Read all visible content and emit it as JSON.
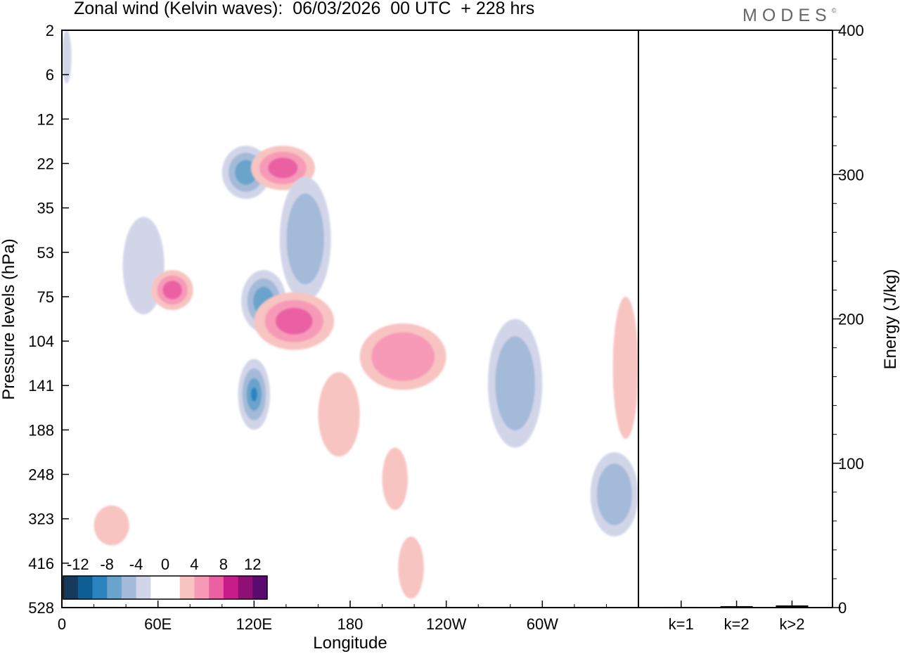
{
  "header": {
    "title": "Zonal wind (Kelvin waves):  06/03/2026  00 UTC  + 228 hrs",
    "logo": "MODES",
    "logo_mark": "©"
  },
  "chart_data": [
    {
      "type": "heatmap",
      "title": "Zonal wind (Kelvin waves):  06/03/2026  00 UTC  + 228 hrs",
      "xlabel": "Longitude",
      "ylabel": "Pressure levels (hPa)",
      "x_ticks": [
        "0",
        "60E",
        "120E",
        "180",
        "120W",
        "60W"
      ],
      "x_tick_values": [
        0,
        60,
        120,
        180,
        240,
        300
      ],
      "xlim": [
        0,
        360
      ],
      "y_ticks": [
        "2",
        "6",
        "12",
        "22",
        "35",
        "53",
        "75",
        "104",
        "141",
        "188",
        "248",
        "323",
        "416",
        "528"
      ],
      "y_scale": "model levels (inverted, top = 2 hPa)",
      "colorbar": {
        "labels": [
          "-12",
          "-8",
          "-4",
          "0",
          "4",
          "8",
          "12"
        ],
        "colors": [
          "#153a5b",
          "#0d5e93",
          "#2a83bf",
          "#6aa3cb",
          "#a4bad9",
          "#d2d5e8",
          "#ffffff",
          "#ffffff",
          "#f7c4c1",
          "#f79ab8",
          "#ea60a3",
          "#c81c88",
          "#8e1074",
          "#5a0b6e"
        ]
      },
      "colors": {
        "neg_light": "#d2d5e8",
        "neg_mid": "#a4bad9",
        "neg_strong": "#6aa3cb",
        "neg_max": "#2a83bf",
        "pos_light": "#f7c4c1",
        "pos_mid": "#f79ab8",
        "pos_strong": "#ea60a3"
      },
      "features": [
        {
          "sign": "neg",
          "lon": [
            0,
            6
          ],
          "level_index": [
            0,
            1.2
          ],
          "strength": 1
        },
        {
          "sign": "neg",
          "lon": [
            38,
            64
          ],
          "level_index": [
            4.2,
            6.4
          ],
          "strength": 1
        },
        {
          "sign": "neg",
          "lon": [
            100,
            130
          ],
          "level_index": [
            2.6,
            3.8
          ],
          "strength": 3
        },
        {
          "sign": "pos",
          "lon": [
            118,
            158
          ],
          "level_index": [
            2.6,
            3.6
          ],
          "strength": 3
        },
        {
          "sign": "neg",
          "lon": [
            136,
            168
          ],
          "level_index": [
            3.3,
            6.1
          ],
          "strength": 2
        },
        {
          "sign": "neg",
          "lon": [
            112,
            140
          ],
          "level_index": [
            5.4,
            6.8
          ],
          "strength": 3
        },
        {
          "sign": "pos",
          "lon": [
            120,
            170
          ],
          "level_index": [
            5.9,
            7.2
          ],
          "strength": 3
        },
        {
          "sign": "pos",
          "lon": [
            56,
            82
          ],
          "level_index": [
            5.4,
            6.3
          ],
          "strength": 3
        },
        {
          "sign": "pos",
          "lon": [
            186,
            240
          ],
          "level_index": [
            6.6,
            8.1
          ],
          "strength": 2
        },
        {
          "sign": "neg",
          "lon": [
            110,
            130
          ],
          "level_index": [
            7.4,
            9.0
          ],
          "strength": 4
        },
        {
          "sign": "pos",
          "lon": [
            160,
            186
          ],
          "level_index": [
            7.7,
            9.6
          ],
          "strength": 1
        },
        {
          "sign": "neg",
          "lon": [
            266,
            300
          ],
          "level_index": [
            6.5,
            9.4
          ],
          "strength": 2
        },
        {
          "sign": "pos",
          "lon": [
            344,
            360
          ],
          "level_index": [
            6.0,
            9.2
          ],
          "strength": 1
        },
        {
          "sign": "pos",
          "lon": [
            200,
            216
          ],
          "level_index": [
            9.4,
            10.8
          ],
          "strength": 1
        },
        {
          "sign": "pos",
          "lon": [
            210,
            226
          ],
          "level_index": [
            11.4,
            12.8
          ],
          "strength": 1
        },
        {
          "sign": "neg",
          "lon": [
            330,
            360
          ],
          "level_index": [
            9.5,
            11.4
          ],
          "strength": 2
        },
        {
          "sign": "pos",
          "lon": [
            20,
            42
          ],
          "level_index": [
            10.7,
            11.6
          ],
          "strength": 1
        }
      ]
    },
    {
      "type": "bar",
      "ylabel": "Energy (J/kg)",
      "categories": [
        "k=1",
        "k=2",
        "k>2"
      ],
      "values": [
        0.5,
        1,
        1.5
      ],
      "ylim": [
        0,
        400
      ],
      "y_ticks": [
        "0",
        "100",
        "200",
        "300",
        "400"
      ]
    }
  ]
}
